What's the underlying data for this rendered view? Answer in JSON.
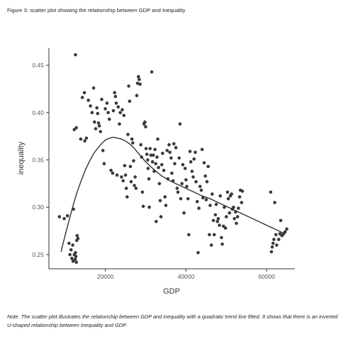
{
  "caption": "Figure 3: scatter plot showing the relationship between GDP and Inequality",
  "note": "Note. The scatter plot illustrates the relationship between GDP and inequality with a quadratic trend line fitted. It shows that there is an inverted U-shaped relationship between Inequality and GDP.",
  "colors": {
    "point": "#3a3a3a",
    "trend": "#333333",
    "axis": "#333333"
  },
  "chart_data": {
    "type": "scatter",
    "title": "",
    "xlabel": "GDP",
    "ylabel": "inequality",
    "xlim": [
      6000,
      67000
    ],
    "ylim": [
      0.235,
      0.468
    ],
    "x_ticks": [
      20000,
      40000,
      60000
    ],
    "y_ticks": [
      0.25,
      0.3,
      0.35,
      0.4,
      0.45
    ],
    "x_tick_labels": [
      "20000",
      "40000",
      "60000"
    ],
    "y_tick_labels": [
      "0.25",
      "0.30",
      "0.35",
      "0.40",
      "0.45"
    ],
    "grid": false,
    "legend": "none",
    "points": [
      [
        8600,
        0.29
      ],
      [
        9800,
        0.288
      ],
      [
        10600,
        0.291
      ],
      [
        11000,
        0.262
      ],
      [
        11200,
        0.25
      ],
      [
        11500,
        0.255
      ],
      [
        11700,
        0.246
      ],
      [
        11900,
        0.26
      ],
      [
        12000,
        0.243
      ],
      [
        12100,
        0.298
      ],
      [
        12300,
        0.25
      ],
      [
        12500,
        0.245
      ],
      [
        12600,
        0.252
      ],
      [
        12700,
        0.248
      ],
      [
        12800,
        0.242
      ],
      [
        12900,
        0.265
      ],
      [
        13000,
        0.27
      ],
      [
        13200,
        0.267
      ],
      [
        12300,
        0.382
      ],
      [
        12800,
        0.384
      ],
      [
        12600,
        0.461
      ],
      [
        13900,
        0.372
      ],
      [
        14300,
        0.416
      ],
      [
        14800,
        0.421
      ],
      [
        14900,
        0.37
      ],
      [
        15300,
        0.373
      ],
      [
        15800,
        0.413
      ],
      [
        16300,
        0.407
      ],
      [
        16700,
        0.4
      ],
      [
        17100,
        0.426
      ],
      [
        17300,
        0.39
      ],
      [
        17600,
        0.383
      ],
      [
        17900,
        0.405
      ],
      [
        18100,
        0.399
      ],
      [
        18300,
        0.389
      ],
      [
        18500,
        0.386
      ],
      [
        18800,
        0.38
      ],
      [
        19100,
        0.414
      ],
      [
        19400,
        0.36
      ],
      [
        19700,
        0.346
      ],
      [
        20000,
        0.404
      ],
      [
        20400,
        0.41
      ],
      [
        20700,
        0.4
      ],
      [
        21000,
        0.393
      ],
      [
        21400,
        0.339
      ],
      [
        21800,
        0.336
      ],
      [
        22000,
        0.402
      ],
      [
        22300,
        0.421
      ],
      [
        22500,
        0.417
      ],
      [
        22700,
        0.41
      ],
      [
        22900,
        0.334
      ],
      [
        23200,
        0.406
      ],
      [
        23500,
        0.388
      ],
      [
        23700,
        0.4
      ],
      [
        24000,
        0.332
      ],
      [
        24200,
        0.403
      ],
      [
        24400,
        0.328
      ],
      [
        24600,
        0.397
      ],
      [
        24800,
        0.344
      ],
      [
        25000,
        0.334
      ],
      [
        25200,
        0.32
      ],
      [
        25400,
        0.311
      ],
      [
        25600,
        0.377
      ],
      [
        25800,
        0.428
      ],
      [
        26000,
        0.412
      ],
      [
        26200,
        0.343
      ],
      [
        26400,
        0.327
      ],
      [
        26600,
        0.372
      ],
      [
        26800,
        0.368
      ],
      [
        27000,
        0.349
      ],
      [
        27200,
        0.323
      ],
      [
        27400,
        0.332
      ],
      [
        27600,
        0.32
      ],
      [
        27800,
        0.418
      ],
      [
        28000,
        0.431
      ],
      [
        28200,
        0.438
      ],
      [
        28400,
        0.435
      ],
      [
        28600,
        0.43
      ],
      [
        28800,
        0.366
      ],
      [
        29000,
        0.353
      ],
      [
        29200,
        0.316
      ],
      [
        29400,
        0.301
      ],
      [
        29600,
        0.388
      ],
      [
        29800,
        0.39
      ],
      [
        30000,
        0.385
      ],
      [
        30100,
        0.362
      ],
      [
        30300,
        0.356
      ],
      [
        30500,
        0.35
      ],
      [
        30600,
        0.341
      ],
      [
        30800,
        0.33
      ],
      [
        30900,
        0.3
      ],
      [
        31100,
        0.362
      ],
      [
        31300,
        0.355
      ],
      [
        31500,
        0.443
      ],
      [
        31700,
        0.348
      ],
      [
        31900,
        0.355
      ],
      [
        32100,
        0.338
      ],
      [
        32300,
        0.361
      ],
      [
        32500,
        0.346
      ],
      [
        32600,
        0.285
      ],
      [
        32800,
        0.353
      ],
      [
        33000,
        0.372
      ],
      [
        33200,
        0.342
      ],
      [
        33400,
        0.325
      ],
      [
        33600,
        0.307
      ],
      [
        33800,
        0.29
      ],
      [
        34000,
        0.345
      ],
      [
        34200,
        0.357
      ],
      [
        34500,
        0.339
      ],
      [
        34800,
        0.311
      ],
      [
        35000,
        0.302
      ],
      [
        35300,
        0.36
      ],
      [
        35500,
        0.33
      ],
      [
        35800,
        0.366
      ],
      [
        36000,
        0.358
      ],
      [
        36300,
        0.352
      ],
      [
        36500,
        0.336
      ],
      [
        36800,
        0.328
      ],
      [
        37000,
        0.367
      ],
      [
        37200,
        0.346
      ],
      [
        37500,
        0.363
      ],
      [
        37800,
        0.32
      ],
      [
        38000,
        0.316
      ],
      [
        38300,
        0.352
      ],
      [
        38500,
        0.388
      ],
      [
        38700,
        0.309
      ],
      [
        39000,
        0.325
      ],
      [
        39200,
        0.345
      ],
      [
        39500,
        0.294
      ],
      [
        39800,
        0.341
      ],
      [
        40000,
        0.329
      ],
      [
        40200,
        0.322
      ],
      [
        40500,
        0.309
      ],
      [
        40700,
        0.271
      ],
      [
        41000,
        0.359
      ],
      [
        41200,
        0.348
      ],
      [
        41500,
        0.338
      ],
      [
        41800,
        0.332
      ],
      [
        42000,
        0.351
      ],
      [
        42300,
        0.358
      ],
      [
        42500,
        0.327
      ],
      [
        42800,
        0.306
      ],
      [
        43000,
        0.252
      ],
      [
        43200,
        0.299
      ],
      [
        43500,
        0.322
      ],
      [
        43800,
        0.318
      ],
      [
        44000,
        0.361
      ],
      [
        44200,
        0.31
      ],
      [
        44500,
        0.347
      ],
      [
        44800,
        0.333
      ],
      [
        45000,
        0.308
      ],
      [
        45200,
        0.327
      ],
      [
        45500,
        0.343
      ],
      [
        45800,
        0.271
      ],
      [
        46000,
        0.302
      ],
      [
        46300,
        0.26
      ],
      [
        46500,
        0.314
      ],
      [
        46800,
        0.286
      ],
      [
        47000,
        0.271
      ],
      [
        47300,
        0.292
      ],
      [
        47500,
        0.303
      ],
      [
        47800,
        0.285
      ],
      [
        48000,
        0.288
      ],
      [
        48300,
        0.281
      ],
      [
        48500,
        0.312
      ],
      [
        48800,
        0.268
      ],
      [
        49000,
        0.261
      ],
      [
        49300,
        0.28
      ],
      [
        49500,
        0.3
      ],
      [
        49800,
        0.278
      ],
      [
        50000,
        0.29
      ],
      [
        50300,
        0.316
      ],
      [
        50500,
        0.309
      ],
      [
        50800,
        0.294
      ],
      [
        51000,
        0.312
      ],
      [
        51300,
        0.314
      ],
      [
        51500,
        0.298
      ],
      [
        51800,
        0.3
      ],
      [
        52000,
        0.288
      ],
      [
        52300,
        0.295
      ],
      [
        52500,
        0.283
      ],
      [
        52800,
        0.29
      ],
      [
        53000,
        0.299
      ],
      [
        53300,
        0.311
      ],
      [
        53500,
        0.318
      ],
      [
        53800,
        0.305
      ],
      [
        54000,
        0.317
      ],
      [
        61000,
        0.316
      ],
      [
        61200,
        0.253
      ],
      [
        61400,
        0.258
      ],
      [
        61600,
        0.262
      ],
      [
        61800,
        0.266
      ],
      [
        62000,
        0.305
      ],
      [
        62300,
        0.271
      ],
      [
        62500,
        0.26
      ],
      [
        63000,
        0.266
      ],
      [
        63300,
        0.272
      ],
      [
        63500,
        0.286
      ],
      [
        63800,
        0.27
      ],
      [
        64200,
        0.272
      ],
      [
        64600,
        0.274
      ],
      [
        65000,
        0.277
      ]
    ],
    "trend_line": {
      "type": "fitted-curve",
      "x": [
        9000,
        10000,
        11000,
        12000,
        13000,
        14000,
        15000,
        16000,
        17000,
        18000,
        19000,
        20000,
        21000,
        22000,
        23000,
        24000,
        25000,
        26000,
        27000,
        28000,
        29000,
        30000,
        32000,
        34000,
        36000,
        38000,
        40000,
        42000,
        44000,
        46000,
        48000,
        50000,
        52000,
        54000,
        56000,
        58000,
        60000,
        62000,
        64000
      ],
      "y": [
        0.253,
        0.27,
        0.286,
        0.302,
        0.316,
        0.328,
        0.339,
        0.348,
        0.356,
        0.362,
        0.367,
        0.371,
        0.373,
        0.374,
        0.373,
        0.372,
        0.37,
        0.367,
        0.363,
        0.358,
        0.353,
        0.348,
        0.34,
        0.333,
        0.328,
        0.324,
        0.32,
        0.316,
        0.312,
        0.309,
        0.305,
        0.301,
        0.297,
        0.293,
        0.289,
        0.285,
        0.281,
        0.277,
        0.273
      ]
    }
  }
}
